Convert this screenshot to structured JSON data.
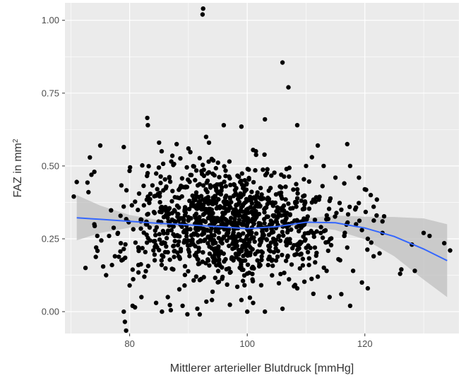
{
  "chart_data": {
    "type": "scatter",
    "title": "",
    "xlabel": "Mittlerer arterieller Blutdruck [mmHg]",
    "ylabel": {
      "base": "FAZ in mm",
      "superscript": "2"
    },
    "xlim": [
      69,
      136
    ],
    "ylim": [
      -0.075,
      1.06
    ],
    "x_ticks": [
      80,
      100,
      120
    ],
    "x_tick_labels": [
      "80",
      "100",
      "120"
    ],
    "y_ticks": [
      0.0,
      0.25,
      0.5,
      0.75,
      1.0
    ],
    "y_tick_labels": [
      "0.00",
      "0.25",
      "0.50",
      "0.75",
      "1.00"
    ],
    "x_minor": [
      70,
      90,
      110,
      130
    ],
    "y_minor": [
      0.125,
      0.375,
      0.625,
      0.875
    ],
    "grid": true,
    "background": "#ebebeb",
    "grid_color": "#ffffff",
    "point_color": "#000000",
    "smooth": {
      "color": "#3366ff",
      "band_color": "#bfbfbf",
      "x": [
        71,
        75,
        80,
        85,
        90,
        95,
        100,
        105,
        110,
        115,
        120,
        125,
        130,
        134
      ],
      "y": [
        0.322,
        0.317,
        0.31,
        0.303,
        0.298,
        0.292,
        0.285,
        0.292,
        0.307,
        0.305,
        0.287,
        0.258,
        0.215,
        0.175
      ],
      "lower": [
        0.245,
        0.27,
        0.288,
        0.292,
        0.29,
        0.285,
        0.278,
        0.284,
        0.293,
        0.28,
        0.248,
        0.19,
        0.11,
        0.05
      ],
      "upper": [
        0.4,
        0.364,
        0.332,
        0.314,
        0.306,
        0.299,
        0.292,
        0.3,
        0.321,
        0.33,
        0.326,
        0.325,
        0.32,
        0.3
      ]
    },
    "points": [
      [
        92.5,
        1.04
      ],
      [
        92.4,
        1.02
      ],
      [
        106.0,
        0.855
      ],
      [
        107.0,
        0.77
      ],
      [
        83.0,
        0.665
      ],
      [
        83.1,
        0.64
      ],
      [
        103.0,
        0.66
      ],
      [
        108.5,
        0.64
      ],
      [
        96.0,
        0.64
      ],
      [
        99.0,
        0.635
      ],
      [
        93.0,
        0.6
      ],
      [
        93.5,
        0.58
      ],
      [
        85.0,
        0.58
      ],
      [
        88.0,
        0.575
      ],
      [
        117.0,
        0.575
      ],
      [
        75.0,
        0.57
      ],
      [
        79.0,
        0.565
      ],
      [
        90.0,
        0.56
      ],
      [
        112.0,
        0.57
      ],
      [
        101.0,
        0.555
      ],
      [
        70.5,
        0.395
      ],
      [
        71.0,
        0.445
      ],
      [
        73.5,
        0.47
      ],
      [
        74.0,
        0.48
      ],
      [
        73.0,
        0.41
      ],
      [
        74.0,
        0.3
      ],
      [
        74.5,
        0.26
      ],
      [
        72.5,
        0.15
      ],
      [
        75.5,
        0.155
      ],
      [
        76.0,
        0.125
      ],
      [
        77.0,
        0.16
      ],
      [
        77.5,
        0.19
      ],
      [
        76.5,
        0.26
      ],
      [
        78.0,
        0.27
      ],
      [
        78.5,
        0.235
      ],
      [
        79.0,
        0.215
      ],
      [
        79.0,
        0.0
      ],
      [
        79.2,
        -0.035
      ],
      [
        79.4,
        -0.065
      ],
      [
        80.0,
        0.09
      ],
      [
        80.5,
        0.02
      ],
      [
        81.5,
        0.16
      ],
      [
        82.0,
        0.05
      ],
      [
        82.5,
        0.12
      ],
      [
        84.5,
        0.03
      ],
      [
        85.5,
        0.0
      ],
      [
        86.5,
        0.05
      ],
      [
        87.0,
        0.005
      ],
      [
        89.0,
        0.02
      ],
      [
        94.0,
        0.04
      ],
      [
        99.0,
        0.04
      ],
      [
        100.0,
        0.0
      ],
      [
        101.0,
        0.03
      ],
      [
        103.0,
        0.0
      ],
      [
        106.0,
        0.01
      ],
      [
        108.5,
        0.08
      ],
      [
        112.0,
        0.12
      ],
      [
        114.0,
        0.05
      ],
      [
        116.0,
        0.06
      ],
      [
        117.5,
        0.02
      ],
      [
        118.0,
        0.14
      ],
      [
        119.5,
        0.1
      ],
      [
        120.5,
        0.08
      ],
      [
        121.5,
        0.19
      ],
      [
        123.0,
        0.27
      ],
      [
        126.0,
        0.13
      ],
      [
        126.2,
        0.145
      ],
      [
        128.0,
        0.23
      ],
      [
        128.5,
        0.14
      ],
      [
        130.0,
        0.27
      ],
      [
        131.0,
        0.26
      ],
      [
        133.5,
        0.235
      ],
      [
        134.5,
        0.21
      ],
      [
        119.0,
        0.46
      ],
      [
        120.0,
        0.42
      ],
      [
        121.0,
        0.4
      ],
      [
        121.5,
        0.36
      ],
      [
        122.0,
        0.33
      ],
      [
        123.0,
        0.31
      ],
      [
        110.0,
        0.5
      ],
      [
        111.0,
        0.53
      ],
      [
        113.0,
        0.5
      ],
      [
        115.0,
        0.46
      ],
      [
        116.5,
        0.44
      ],
      [
        117.5,
        0.5
      ],
      [
        114.0,
        0.38
      ],
      [
        116.0,
        0.35
      ],
      [
        118.5,
        0.3
      ],
      [
        119.5,
        0.28
      ],
      [
        120.5,
        0.25
      ],
      [
        122.5,
        0.2
      ],
      [
        117.0,
        0.22
      ],
      [
        115.5,
        0.18
      ],
      [
        113.5,
        0.14
      ],
      [
        111.5,
        0.22
      ],
      [
        110.5,
        0.16
      ],
      [
        112.5,
        0.27
      ],
      [
        116.5,
        0.26
      ]
    ]
  }
}
